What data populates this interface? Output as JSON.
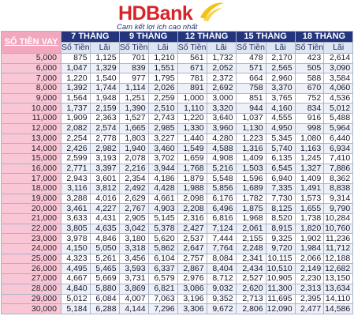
{
  "logo": {
    "brand_hd": "HD",
    "brand_bank": "Bank",
    "tagline": "Cam kết lợi ích cao nhất"
  },
  "table": {
    "loan_header": "SỐ TIỀN VAY",
    "terms": [
      "7 THÁNG",
      "9 THÁNG",
      "12 THÁNG",
      "15 THÁNG",
      "18 THÁNG"
    ],
    "sub_headers": [
      "Số Tiền",
      "Lãi"
    ],
    "rows": [
      {
        "loan": "5,000",
        "cells": [
          "875",
          "1,125",
          "701",
          "1,210",
          "561",
          "1,732",
          "478",
          "2,170",
          "423",
          "2,614"
        ]
      },
      {
        "loan": "6,000",
        "cells": [
          "1,047",
          "1,329",
          "839",
          "1,551",
          "671",
          "2,052",
          "571",
          "2,565",
          "505",
          "3,090"
        ]
      },
      {
        "loan": "7,000",
        "cells": [
          "1,220",
          "1,540",
          "977",
          "1,795",
          "781",
          "2,372",
          "664",
          "2,960",
          "588",
          "3,584"
        ]
      },
      {
        "loan": "8,000",
        "cells": [
          "1,392",
          "1,744",
          "1,114",
          "2,026",
          "891",
          "2,692",
          "758",
          "3,370",
          "670",
          "4,060"
        ]
      },
      {
        "loan": "9,000",
        "cells": [
          "1,564",
          "1,948",
          "1,251",
          "2,259",
          "1,000",
          "3,000",
          "851",
          "3,765",
          "752",
          "4,536"
        ]
      },
      {
        "loan": "10,000",
        "cells": [
          "1,737",
          "2,159",
          "1,390",
          "2,510",
          "1,110",
          "3,320",
          "944",
          "4,160",
          "834",
          "5,012"
        ]
      },
      {
        "loan": "11,000",
        "cells": [
          "1,909",
          "2,363",
          "1,527",
          "2,743",
          "1,220",
          "3,640",
          "1,037",
          "4,555",
          "916",
          "5,488"
        ]
      },
      {
        "loan": "12,000",
        "cells": [
          "2,082",
          "2,574",
          "1,665",
          "2,985",
          "1,330",
          "3,960",
          "1,130",
          "4,950",
          "998",
          "5,964"
        ]
      },
      {
        "loan": "13,000",
        "cells": [
          "2,254",
          "2,778",
          "1,803",
          "3,227",
          "1,440",
          "4,280",
          "1,223",
          "5,345",
          "1,080",
          "6,440"
        ]
      },
      {
        "loan": "14,000",
        "cells": [
          "2,426",
          "2,982",
          "1,940",
          "3,460",
          "1,549",
          "4,588",
          "1,316",
          "5,740",
          "1,163",
          "6,934"
        ]
      },
      {
        "loan": "15,000",
        "cells": [
          "2,599",
          "3,193",
          "2,078",
          "3,702",
          "1,659",
          "4,908",
          "1,409",
          "6,135",
          "1,245",
          "7,410"
        ]
      },
      {
        "loan": "16,000",
        "cells": [
          "2,771",
          "3,397",
          "2,216",
          "3,944",
          "1,768",
          "5,216",
          "1,503",
          "6,545",
          "1,327",
          "7,886"
        ]
      },
      {
        "loan": "17,000",
        "cells": [
          "2,943",
          "3,601",
          "2,354",
          "4,186",
          "1,879",
          "5,548",
          "1,596",
          "6,940",
          "1,409",
          "8,362"
        ]
      },
      {
        "loan": "18,000",
        "cells": [
          "3,116",
          "3,812",
          "2,492",
          "4,428",
          "1,988",
          "5,856",
          "1,689",
          "7,335",
          "1,491",
          "8,838"
        ]
      },
      {
        "loan": "19,000",
        "cells": [
          "3,288",
          "4,016",
          "2,629",
          "4,661",
          "2,098",
          "6,176",
          "1,782",
          "7,730",
          "1,573",
          "9,314"
        ]
      },
      {
        "loan": "20,000",
        "cells": [
          "3,461",
          "4,227",
          "2,767",
          "4,903",
          "2,208",
          "6,496",
          "1,875",
          "8,125",
          "1,655",
          "9,790"
        ]
      },
      {
        "loan": "21,000",
        "cells": [
          "3,633",
          "4,431",
          "2,905",
          "5,145",
          "2,316",
          "6,816",
          "1,968",
          "8,520",
          "1,738",
          "10,284"
        ]
      },
      {
        "loan": "22,000",
        "cells": [
          "3,805",
          "4,635",
          "3,042",
          "5,378",
          "2,427",
          "7,124",
          "2,061",
          "8,915",
          "1,820",
          "10,760"
        ]
      },
      {
        "loan": "23,000",
        "cells": [
          "3,978",
          "4,846",
          "3,180",
          "5,620",
          "2,537",
          "7,444",
          "2,155",
          "9,325",
          "1,902",
          "11,236"
        ]
      },
      {
        "loan": "24,000",
        "cells": [
          "4,150",
          "5,050",
          "3,318",
          "5,862",
          "2,647",
          "7,764",
          "2,248",
          "9,720",
          "1,984",
          "11,712"
        ]
      },
      {
        "loan": "25,000",
        "cells": [
          "4,323",
          "5,261",
          "3,456",
          "6,104",
          "2,757",
          "8,084",
          "2,341",
          "10,115",
          "2,066",
          "12,188"
        ]
      },
      {
        "loan": "26,000",
        "cells": [
          "4,495",
          "5,465",
          "3,593",
          "6,337",
          "2,867",
          "8,404",
          "2,434",
          "10,510",
          "2,149",
          "12,682"
        ]
      },
      {
        "loan": "27,000",
        "cells": [
          "4,667",
          "5,669",
          "3,731",
          "6,579",
          "2,976",
          "8,712",
          "2,527",
          "10,905",
          "2,230",
          "13,150"
        ]
      },
      {
        "loan": "28,000",
        "cells": [
          "4,840",
          "5,880",
          "3,869",
          "6,821",
          "3,086",
          "9,032",
          "2,620",
          "11,300",
          "2,313",
          "13,634"
        ]
      },
      {
        "loan": "29,000",
        "cells": [
          "5,012",
          "6,084",
          "4,007",
          "7,063",
          "3,196",
          "9,352",
          "2,713",
          "11,695",
          "2,395",
          "14,110"
        ]
      },
      {
        "loan": "30,000",
        "cells": [
          "5,184",
          "6,288",
          "4,144",
          "7,296",
          "3,306",
          "9,672",
          "2,806",
          "12,090",
          "2,477",
          "14,586"
        ]
      }
    ]
  },
  "colors": {
    "header_blue": "#25357d",
    "loan_pink": "#f8c6d4",
    "brand_red": "#d7232a",
    "swoosh_yellow": "#f2c21a"
  }
}
